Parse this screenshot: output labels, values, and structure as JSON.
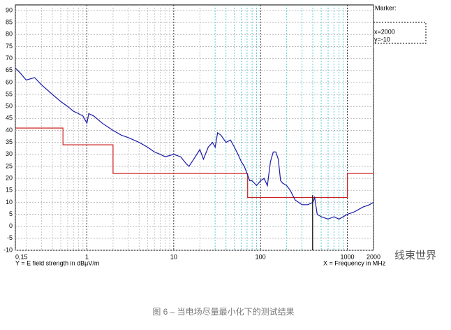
{
  "chart_data": {
    "type": "line",
    "ylabel": "Y = E field strength in dBµV/m",
    "xlabel": "X = Frequency in MHz",
    "xscale": "log",
    "grid": true,
    "xlim": [
      0.15,
      2000
    ],
    "ylim": [
      -10,
      90
    ],
    "xticks": [
      {
        "value": 0.15,
        "label": "0,15"
      },
      1,
      10,
      100,
      1000,
      2000
    ],
    "yticks": [
      -10,
      -5,
      0,
      5,
      10,
      15,
      20,
      25,
      30,
      35,
      40,
      45,
      50,
      55,
      60,
      65,
      70,
      75,
      80,
      85,
      90
    ],
    "series": [
      {
        "color": "#cc2222",
        "x": [
          0.15,
          0.53,
          0.53,
          2,
          2,
          71,
          71,
          1000,
          1000,
          2000
        ],
        "values": [
          41,
          41,
          34,
          34,
          22,
          22,
          12,
          12,
          22,
          22
        ]
      },
      {
        "color": "#1a1aa8",
        "x": [
          0.15,
          0.17,
          0.2,
          0.25,
          0.3,
          0.4,
          0.5,
          0.6,
          0.7,
          0.8,
          0.9,
          1.0,
          1.05,
          1.2,
          1.5,
          2,
          2.5,
          3,
          4,
          5,
          6,
          7,
          8,
          10,
          12,
          14,
          15,
          17,
          20,
          22,
          25,
          28,
          30,
          32,
          35,
          40,
          45,
          50,
          55,
          60,
          65,
          70,
          75,
          80,
          90,
          100,
          110,
          120,
          130,
          140,
          150,
          160,
          170,
          180,
          200,
          220,
          250,
          300,
          350,
          400,
          420,
          450,
          500,
          600,
          700,
          800,
          1000,
          1200,
          1500,
          1800,
          2000
        ],
        "values": [
          66,
          64,
          61,
          62,
          59,
          55,
          52,
          50,
          48,
          47,
          46,
          43,
          47,
          46,
          43,
          40,
          38,
          37,
          35,
          33,
          31,
          30,
          29,
          30,
          29,
          26,
          25,
          28,
          32,
          28,
          33,
          35,
          33,
          39,
          38,
          35,
          36,
          33,
          30,
          27,
          25,
          22,
          19,
          19,
          17,
          19,
          20,
          17,
          27,
          31,
          31,
          28,
          19,
          18,
          17,
          15,
          11,
          9,
          9,
          10,
          12,
          5,
          4,
          3,
          4,
          3,
          5,
          6,
          8,
          9,
          10
        ]
      },
      {
        "color": "#000000",
        "x": [
          398,
          398
        ],
        "values": [
          13,
          -10
        ]
      }
    ]
  },
  "marker": {
    "title": "Marker:",
    "x": "x=2000",
    "y": "y=-10"
  },
  "watermark": "线束世界",
  "caption": "图 6 – 当电场尽量最小化下的测试结果"
}
